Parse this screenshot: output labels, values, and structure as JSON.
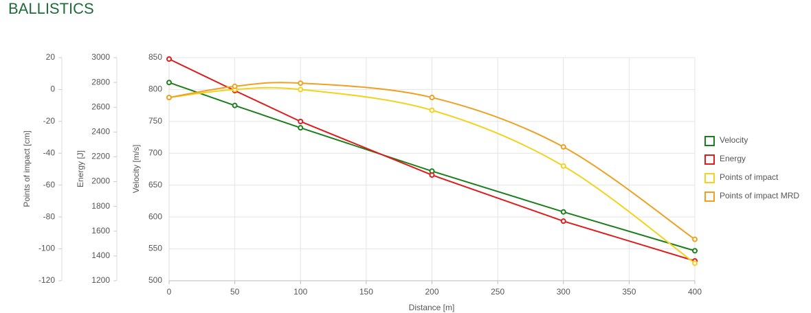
{
  "chart_data": {
    "type": "line",
    "title": "BALLISTICS",
    "x_label": "Distance [m]",
    "y_label": "Velocity [m/s]",
    "y2_label": "Energy [J]",
    "y3_label": "Points of impact [cm]",
    "x": [
      0,
      50,
      100,
      200,
      300,
      400
    ],
    "xlim": [
      0,
      400
    ],
    "xticks": [
      0,
      50,
      100,
      150,
      200,
      250,
      300,
      350,
      400
    ],
    "ylim": [
      500,
      850
    ],
    "yticks": [
      500,
      550,
      600,
      650,
      700,
      750,
      800,
      850
    ],
    "y2lim": [
      1200,
      3000
    ],
    "y2ticks": [
      1200,
      1400,
      1600,
      1800,
      2000,
      2200,
      2400,
      2600,
      2800,
      3000
    ],
    "y3lim": [
      -120,
      20
    ],
    "y3ticks": [
      -120,
      -100,
      -80,
      -60,
      -40,
      -20,
      0,
      20
    ],
    "grid": true,
    "series": [
      {
        "name": "Velocity",
        "color": "#1a7f1a",
        "axis": "y",
        "smooth": false,
        "values": [
          811,
          775,
          740,
          672,
          608,
          547
        ]
      },
      {
        "name": "Energy",
        "color": "#e01b1b",
        "axis": "y2",
        "smooth": false,
        "values": [
          2989,
          2734,
          2485,
          2053,
          1681,
          1360
        ]
      },
      {
        "name": "Points of impact",
        "color": "#f2d21b",
        "axis": "y3",
        "smooth": true,
        "values": [
          -5,
          0,
          0,
          -13,
          -48,
          -109
        ]
      },
      {
        "name": "Points of impact MRD",
        "color": "#f0a020",
        "axis": "y3",
        "smooth": true,
        "values": [
          -5,
          2,
          4,
          -5,
          -36,
          -94
        ]
      }
    ]
  }
}
